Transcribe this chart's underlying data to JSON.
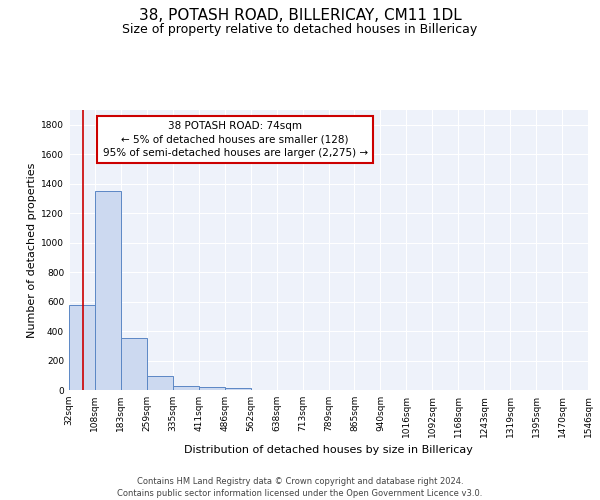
{
  "title": "38, POTASH ROAD, BILLERICAY, CM11 1DL",
  "subtitle": "Size of property relative to detached houses in Billericay",
  "xlabel": "Distribution of detached houses by size in Billericay",
  "ylabel": "Number of detached properties",
  "bin_labels": [
    "32sqm",
    "108sqm",
    "183sqm",
    "259sqm",
    "335sqm",
    "411sqm",
    "486sqm",
    "562sqm",
    "638sqm",
    "713sqm",
    "789sqm",
    "865sqm",
    "940sqm",
    "1016sqm",
    "1092sqm",
    "1168sqm",
    "1243sqm",
    "1319sqm",
    "1395sqm",
    "1470sqm",
    "1546sqm"
  ],
  "bar_heights": [
    580,
    1350,
    355,
    95,
    30,
    20,
    15,
    0,
    0,
    0,
    0,
    0,
    0,
    0,
    0,
    0,
    0,
    0,
    0,
    0
  ],
  "bar_color": "#ccd9f0",
  "bar_edge_color": "#5b87c5",
  "subject_line_color": "#cc0000",
  "annotation_text": "38 POTASH ROAD: 74sqm\n← 5% of detached houses are smaller (128)\n95% of semi-detached houses are larger (2,275) →",
  "annotation_box_color": "#ffffff",
  "annotation_box_edge_color": "#cc0000",
  "ylim": [
    0,
    1900
  ],
  "yticks": [
    0,
    200,
    400,
    600,
    800,
    1000,
    1200,
    1400,
    1600,
    1800
  ],
  "background_color": "#eef2fa",
  "grid_color": "#ffffff",
  "footer_text": "Contains HM Land Registry data © Crown copyright and database right 2024.\nContains public sector information licensed under the Open Government Licence v3.0.",
  "title_fontsize": 11,
  "subtitle_fontsize": 9,
  "xlabel_fontsize": 8,
  "ylabel_fontsize": 8,
  "tick_fontsize": 6.5,
  "annotation_fontsize": 7.5,
  "footer_fontsize": 6,
  "bin_edge_values": [
    32,
    108,
    183,
    259,
    335,
    411,
    486,
    562,
    638,
    713,
    789,
    865,
    940,
    1016,
    1092,
    1168,
    1243,
    1319,
    1395,
    1470,
    1546
  ],
  "subject_sqm": 74
}
